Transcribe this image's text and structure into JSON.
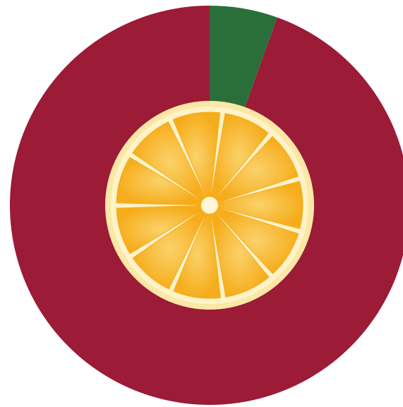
{
  "chart_data": {
    "type": "pie",
    "style": "donut",
    "start_angle_deg": 0,
    "direction": "clockwise",
    "slices": [
      {
        "value": 5.5,
        "color": "#2a6f3a"
      },
      {
        "value": 94.5,
        "color": "#9c1b36"
      }
    ],
    "center_image": "orange-slice",
    "colors": {
      "orange_rind": "#fbe7a6",
      "orange_pith": "#fff3c9",
      "orange_flesh": "#f6ad1c",
      "orange_flesh_light": "#fbd26b",
      "orange_center": "#fff6d8"
    }
  }
}
